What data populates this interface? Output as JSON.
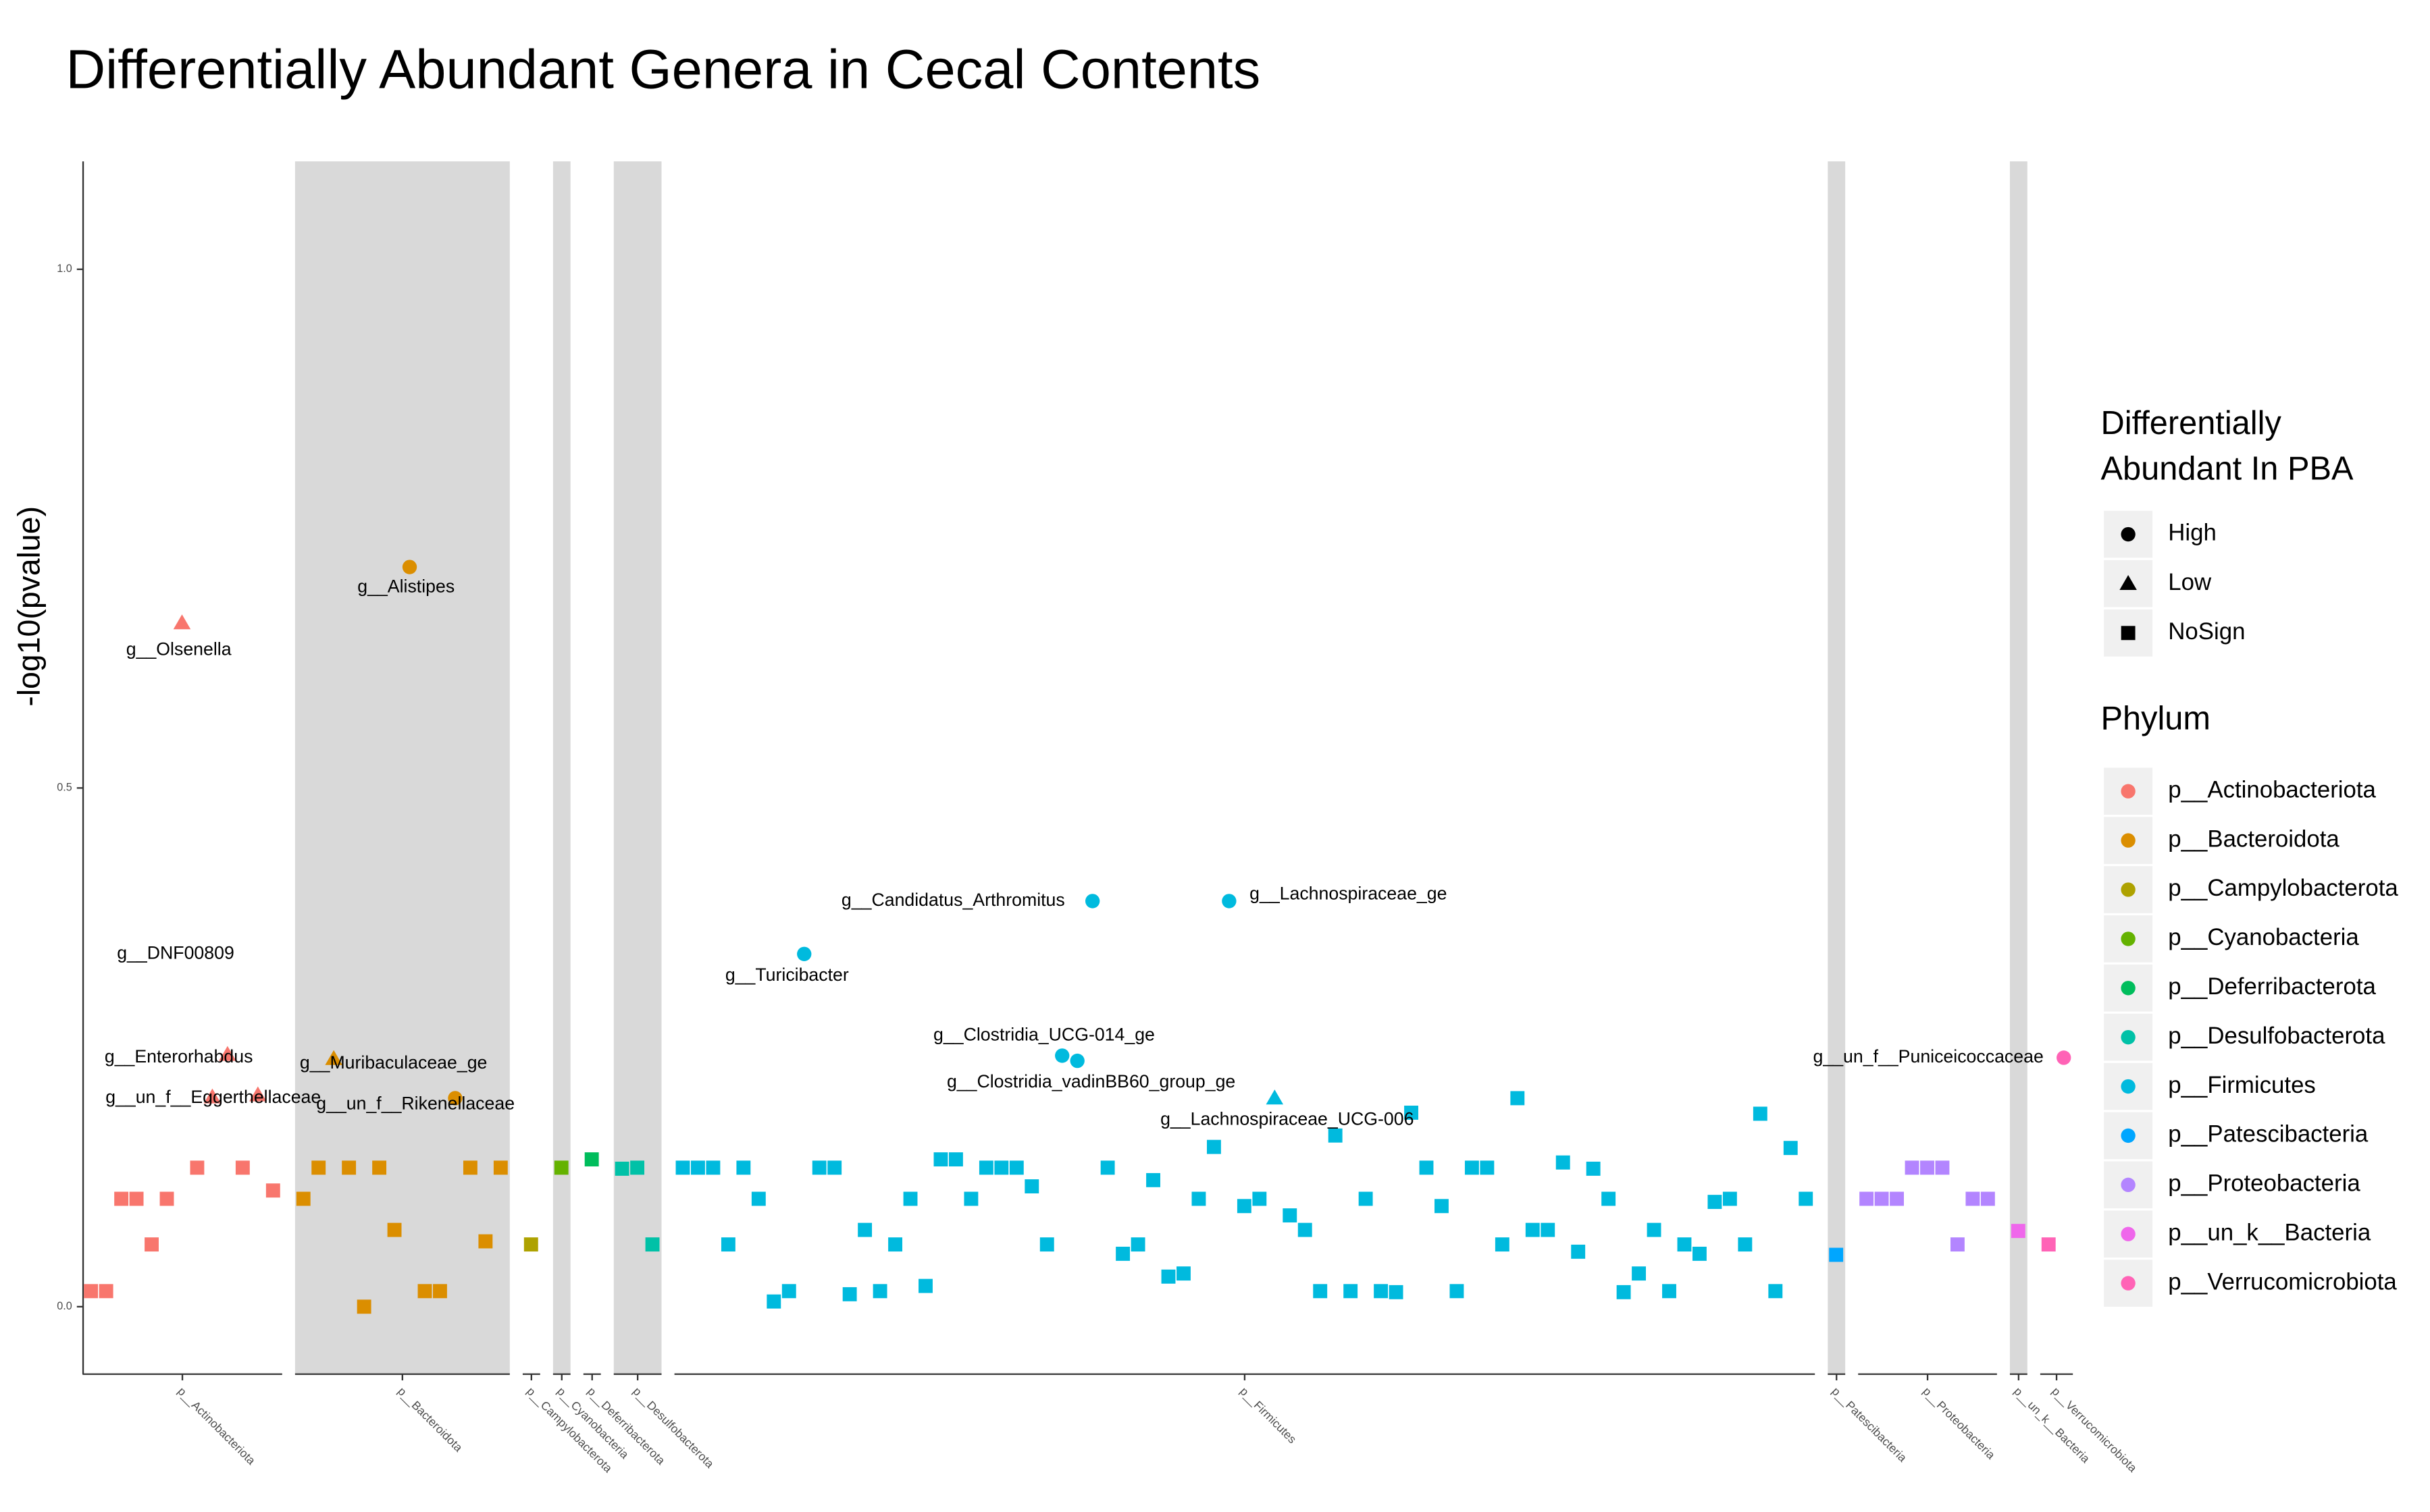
{
  "chart_data": {
    "type": "scatter",
    "title": "Differentially Abundant Genera in Cecal Contents",
    "ylabel": "-log10(pvalue)",
    "ylim": [
      -0.065,
      1.104
    ],
    "yticks": [
      {
        "value": 0,
        "label": "0.0"
      },
      0.5,
      {
        "value": 1,
        "label": "1.0"
      }
    ],
    "shape_legend": {
      "title": "Differentially Abundant In PBA",
      "entries": [
        "High",
        "Low",
        "NoSign"
      ]
    },
    "color_legend_title": "Phylum",
    "series": [
      {
        "name": "p__Actinobacteriota",
        "color": "#F8766D",
        "x": [
          0,
          1,
          2,
          3,
          4,
          5,
          6,
          7,
          8,
          9,
          10,
          11,
          12
        ],
        "values": [
          0.015,
          0.015,
          0.104,
          0.104,
          0.06,
          0.104,
          0.659,
          0.134,
          0.202,
          0.243,
          0.134,
          0.204,
          0.112
        ],
        "shapes": [
          "NoSign",
          "NoSign",
          "NoSign",
          "NoSign",
          "NoSign",
          "NoSign",
          "Low",
          "NoSign",
          "Low",
          "Low",
          "NoSign",
          "Low",
          "NoSign"
        ],
        "labels": [
          null,
          null,
          null,
          null,
          null,
          null,
          "g__Olsenella",
          null,
          "g__DNF00809",
          "g__Enterorhabdus",
          null,
          "g__un_f__Eggerthellaceae",
          null
        ]
      },
      {
        "name": "p__Bacteroidota",
        "color": "#DB8E00",
        "x": [
          14,
          15,
          16,
          17,
          18,
          19,
          20,
          21,
          22,
          23,
          24,
          25,
          26,
          27
        ],
        "values": [
          0.104,
          0.134,
          0.239,
          0.134,
          0,
          0.134,
          0.074,
          0.713,
          0.015,
          0.015,
          0.201,
          0.134,
          0.063,
          0.134
        ],
        "shapes": [
          "NoSign",
          "NoSign",
          "Low",
          "NoSign",
          "NoSign",
          "NoSign",
          "NoSign",
          "High",
          "NoSign",
          "NoSign",
          "High",
          "NoSign",
          "NoSign",
          "NoSign"
        ],
        "labels": [
          null,
          null,
          "g__Muribaculaceae_ge",
          null,
          null,
          null,
          null,
          "g__Alistipes",
          null,
          null,
          "g__un_f__Rikenellaceae",
          null,
          null,
          null
        ]
      },
      {
        "name": "p__Campylobacterota",
        "color": "#AEA200",
        "x": [
          29
        ],
        "values": [
          0.06
        ],
        "shapes": [
          "NoSign"
        ],
        "labels": [
          null
        ]
      },
      {
        "name": "p__Cyanobacteria",
        "color": "#64B200",
        "x": [
          31
        ],
        "values": [
          0.134
        ],
        "shapes": [
          "NoSign"
        ],
        "labels": [
          null
        ]
      },
      {
        "name": "p__Deferribacterota",
        "color": "#00BD5C",
        "x": [
          33
        ],
        "values": [
          0.142
        ],
        "shapes": [
          "NoSign"
        ],
        "labels": [
          null
        ]
      },
      {
        "name": "p__Desulfobacterota",
        "color": "#00C1A7",
        "x": [
          35,
          36,
          37
        ],
        "values": [
          0.133,
          0.134,
          0.06
        ],
        "shapes": [
          "NoSign",
          "NoSign",
          "NoSign"
        ],
        "labels": [
          null,
          null,
          null
        ]
      },
      {
        "name": "p__Firmicutes",
        "color": "#00BADE",
        "x": [
          39,
          40,
          41,
          42,
          43,
          44,
          45,
          46,
          47,
          48,
          49,
          50,
          51,
          52,
          53,
          54,
          55,
          56,
          57,
          58,
          59,
          60,
          61,
          62,
          63,
          64,
          65,
          66,
          67,
          68,
          69,
          70,
          71,
          72,
          73,
          74,
          75,
          76,
          77,
          78,
          79,
          80,
          81,
          82,
          83,
          84,
          85,
          86,
          87,
          88,
          89,
          90,
          91,
          92,
          93,
          94,
          95,
          96,
          97,
          98,
          99,
          100,
          101,
          102,
          103,
          104,
          105,
          106,
          107,
          108,
          109,
          110,
          111,
          112,
          113
        ],
        "values": [
          0.134,
          0.134,
          0.134,
          0.06,
          0.134,
          0.104,
          0.005,
          0.015,
          0.34,
          0.134,
          0.134,
          0.012,
          0.074,
          0.015,
          0.06,
          0.104,
          0.02,
          0.142,
          0.142,
          0.104,
          0.134,
          0.134,
          0.134,
          0.116,
          0.06,
          0.242,
          0.237,
          0.391,
          0.134,
          0.051,
          0.06,
          0.122,
          0.029,
          0.032,
          0.104,
          0.154,
          0.391,
          0.097,
          0.104,
          0.201,
          0.088,
          0.074,
          0.015,
          0.165,
          0.015,
          0.104,
          0.015,
          0.014,
          0.187,
          0.134,
          0.097,
          0.015,
          0.134,
          0.134,
          0.06,
          0.201,
          0.074,
          0.074,
          0.139,
          0.053,
          0.133,
          0.104,
          0.014,
          0.032,
          0.074,
          0.015,
          0.06,
          0.051,
          0.101,
          0.104,
          0.06,
          0.186,
          0.015,
          0.153,
          0.104
        ],
        "shapes": [
          "NoSign",
          "NoSign",
          "NoSign",
          "NoSign",
          "NoSign",
          "NoSign",
          "NoSign",
          "NoSign",
          "High",
          "NoSign",
          "NoSign",
          "NoSign",
          "NoSign",
          "NoSign",
          "NoSign",
          "NoSign",
          "NoSign",
          "NoSign",
          "NoSign",
          "NoSign",
          "NoSign",
          "NoSign",
          "NoSign",
          "NoSign",
          "NoSign",
          "High",
          "High",
          "High",
          "NoSign",
          "NoSign",
          "NoSign",
          "NoSign",
          "NoSign",
          "NoSign",
          "NoSign",
          "NoSign",
          "High",
          "NoSign",
          "NoSign",
          "Low",
          "NoSign",
          "NoSign",
          "NoSign",
          "NoSign",
          "NoSign",
          "NoSign",
          "NoSign",
          "NoSign",
          "NoSign",
          "NoSign",
          "NoSign",
          "NoSign",
          "NoSign",
          "NoSign",
          "NoSign",
          "NoSign",
          "NoSign",
          "NoSign",
          "NoSign",
          "NoSign",
          "NoSign",
          "NoSign",
          "NoSign",
          "NoSign",
          "NoSign",
          "NoSign",
          "NoSign",
          "NoSign",
          "NoSign",
          "NoSign",
          "NoSign",
          "NoSign",
          "NoSign",
          "NoSign",
          "NoSign"
        ],
        "labels": [
          null,
          null,
          null,
          null,
          null,
          null,
          null,
          null,
          "g__Turicibacter",
          null,
          null,
          null,
          null,
          null,
          null,
          null,
          null,
          null,
          null,
          null,
          null,
          null,
          null,
          null,
          null,
          "g__Clostridia_UCG-014_ge",
          "g__Clostridia_vadinBB60_group_ge",
          "g__Candidatus_Arthromitus",
          null,
          null,
          null,
          null,
          null,
          null,
          null,
          null,
          "g__Lachnospiraceae_ge",
          null,
          null,
          "g__Lachnospiraceae_UCG-006",
          null,
          null,
          null,
          null,
          null,
          null,
          null,
          null,
          null,
          null,
          null,
          null,
          null,
          null,
          null,
          null,
          null,
          null,
          null,
          null,
          null,
          null,
          null,
          null,
          null,
          null,
          null,
          null,
          null,
          null,
          null,
          null,
          null,
          null,
          null
        ]
      },
      {
        "name": "p__Patescibacteria",
        "color": "#00A6FF",
        "x": [
          115
        ],
        "values": [
          0.05
        ],
        "shapes": [
          "NoSign"
        ],
        "labels": [
          null
        ]
      },
      {
        "name": "p__Proteobacteria",
        "color": "#B385FF",
        "x": [
          117,
          118,
          119,
          120,
          121,
          122,
          123,
          124,
          125
        ],
        "values": [
          0.104,
          0.104,
          0.104,
          0.134,
          0.134,
          0.134,
          0.06,
          0.104,
          0.104
        ],
        "shapes": [
          "NoSign",
          "NoSign",
          "NoSign",
          "NoSign",
          "NoSign",
          "NoSign",
          "NoSign",
          "NoSign",
          "NoSign"
        ],
        "labels": [
          null,
          null,
          null,
          null,
          null,
          null,
          null,
          null,
          null
        ]
      },
      {
        "name": "p__un_k__Bacteria",
        "color": "#EF67EB",
        "x": [
          127
        ],
        "values": [
          0.073
        ],
        "shapes": [
          "NoSign"
        ],
        "labels": [
          null
        ]
      },
      {
        "name": "p__Verrucomicrobiota",
        "color": "#FF63B6",
        "x": [
          129,
          130
        ],
        "values": [
          0.06,
          0.24
        ],
        "shapes": [
          "NoSign",
          "High"
        ],
        "labels": [
          null,
          "g__un_f__Puniceicoccaceae"
        ]
      }
    ]
  }
}
